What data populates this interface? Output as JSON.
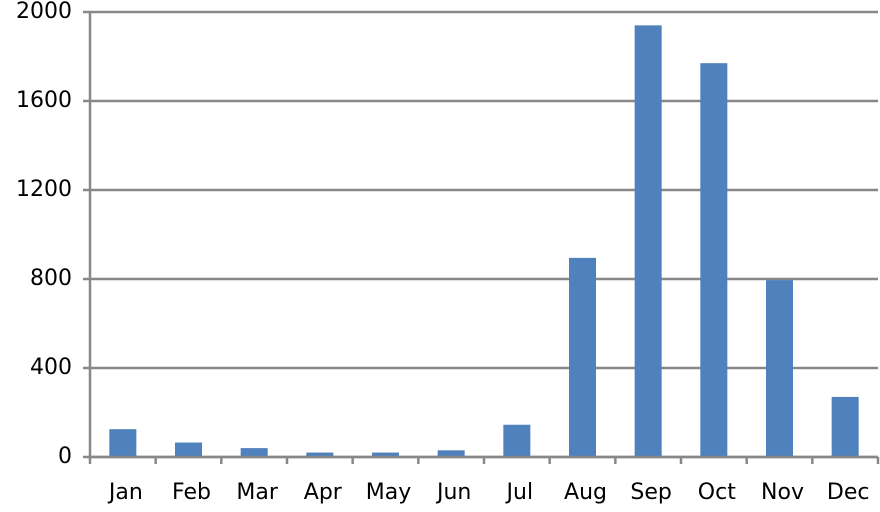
{
  "chart_data": {
    "type": "bar",
    "categories": [
      "Jan",
      "Feb",
      "Mar",
      "Apr",
      "May",
      "Jun",
      "Jul",
      "Aug",
      "Sep",
      "Oct",
      "Nov",
      "Dec"
    ],
    "values": [
      125,
      65,
      40,
      20,
      20,
      30,
      145,
      895,
      1940,
      1770,
      795,
      270
    ],
    "color": "#4f81bd",
    "ylim": [
      0,
      2000
    ],
    "yticks": [
      0,
      400,
      800,
      1200,
      1600,
      2000
    ],
    "grid": true
  }
}
